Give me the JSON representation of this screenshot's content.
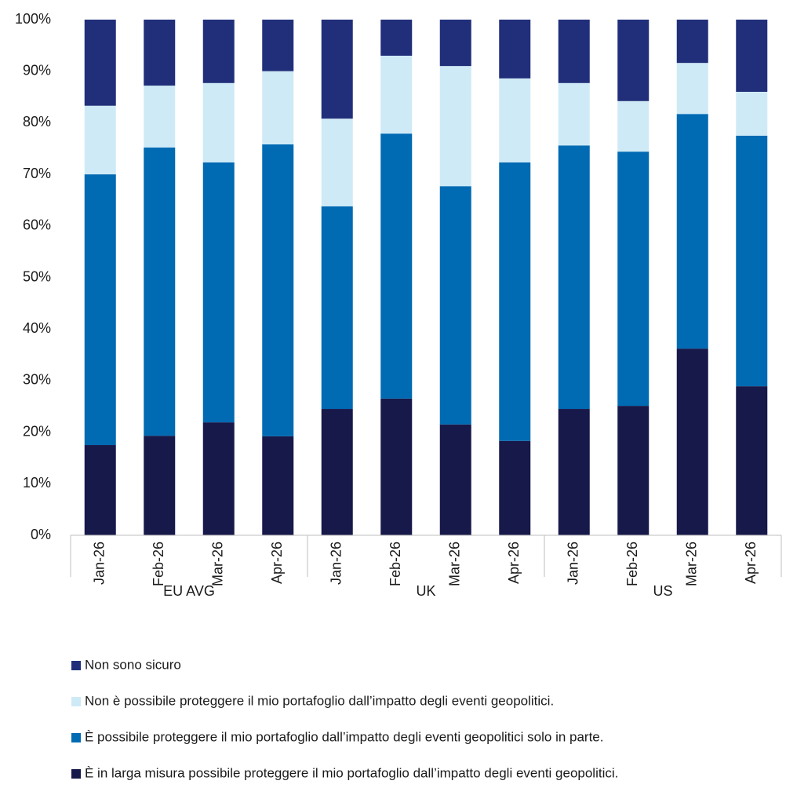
{
  "chart_data": {
    "type": "stacked_bar",
    "categories": [
      "Jan-26",
      "Feb-26",
      "Mar-26",
      "Apr-26",
      "Jan-26",
      "Feb-26",
      "Mar-26",
      "Apr-26",
      "Jan-26",
      "Feb-26",
      "Mar-26",
      "Apr-26"
    ],
    "groups": [
      "EU AVG",
      "UK",
      "US"
    ],
    "series": [
      {
        "name": "È in larga misura possibile proteggere il mio portafoglio dall’impatto degli eventi geopolitici.",
        "color": "#17194a",
        "values": [
          17.5,
          19.3,
          21.9,
          19.2,
          24.5,
          26.5,
          21.5,
          18.3,
          24.5,
          25.1,
          36.2,
          28.9
        ]
      },
      {
        "name": "È possibile proteggere il mio portafoglio dall’impatto degli eventi geopolitici solo in parte.",
        "color": "#006ab3",
        "values": [
          52.5,
          55.9,
          50.4,
          56.6,
          39.3,
          51.4,
          46.2,
          54.0,
          51.1,
          49.3,
          45.5,
          48.6
        ]
      },
      {
        "name": "Non è possibile proteggere il mio portafoglio dall’impatto degli eventi geopolitici.",
        "color": "#ceeaf6",
        "values": [
          13.3,
          12.0,
          15.4,
          14.2,
          17.0,
          15.1,
          23.3,
          16.3,
          12.1,
          9.8,
          9.9,
          8.5
        ]
      },
      {
        "name": "Non sono sicuro",
        "color": "#212f7a",
        "values": [
          16.7,
          12.8,
          12.3,
          10.0,
          19.2,
          7.0,
          9.0,
          11.4,
          12.3,
          15.8,
          8.4,
          14.0
        ]
      }
    ],
    "ylim": [
      0,
      100
    ],
    "yticks": [
      {
        "value": 0,
        "label": "0%"
      },
      {
        "value": 10,
        "label": "10%"
      },
      {
        "value": 20,
        "label": "20%"
      },
      {
        "value": 30,
        "label": "30%"
      },
      {
        "value": 40,
        "label": "40%"
      },
      {
        "value": 50,
        "label": "50%"
      },
      {
        "value": 60,
        "label": "60%"
      },
      {
        "value": 70,
        "label": "70%"
      },
      {
        "value": 80,
        "label": "80%"
      },
      {
        "value": 90,
        "label": "90%"
      },
      {
        "value": 100,
        "label": "100%"
      }
    ],
    "grid": false,
    "legend": "bottom"
  }
}
